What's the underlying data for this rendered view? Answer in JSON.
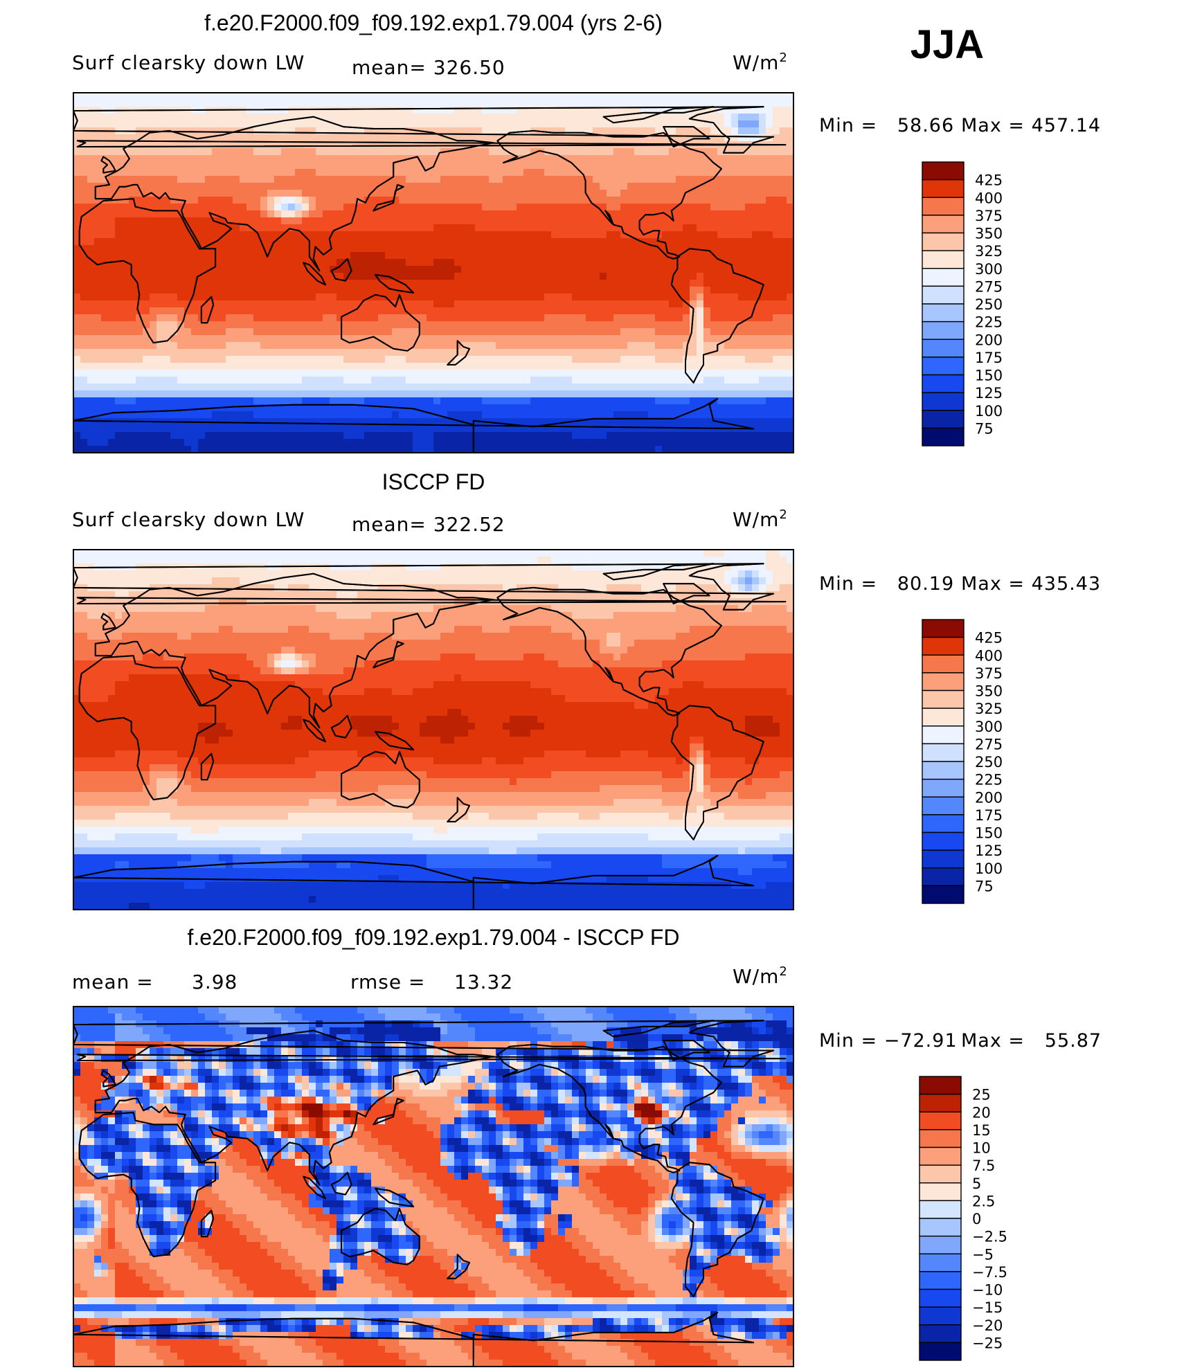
{
  "season": "JJA",
  "units": "W/m",
  "units_exp": "2",
  "colors": {
    "abs": [
      "#000b6f",
      "#0a24a8",
      "#0f38d2",
      "#1849f0",
      "#2f66fb",
      "#5587fc",
      "#7fa8fd",
      "#a8c6fe",
      "#cfe1ff",
      "#eef4ff",
      "#fde7d8",
      "#fcc6aa",
      "#fba07a",
      "#f7774d",
      "#f24d22",
      "#df3508",
      "#bd2203",
      "#8a0b02"
    ],
    "diff": [
      "#000b6f",
      "#0a24a8",
      "#0f38d2",
      "#1849f0",
      "#2f66fb",
      "#5587fc",
      "#7fa8fd",
      "#a8c6fe",
      "#d4e5ff",
      "#fde7d8",
      "#fcc6aa",
      "#fba07a",
      "#f7774d",
      "#f24d22",
      "#df3508",
      "#bd2203",
      "#8a0b02"
    ]
  },
  "chart_data": [
    {
      "type": "heatmap",
      "title": "f.e20.F2000.f09_f09.192.exp1.79.004 (yrs 2-6)",
      "variable_label": "Surf clearsky down LW",
      "mean_label": "mean= 326.50",
      "mean": 326.5,
      "units": "W/m2",
      "min_label": "Min =   58.66",
      "max_label": "Max = 457.14",
      "min": 58.66,
      "max": 457.14,
      "colorbar_levels": [
        "425",
        "400",
        "375",
        "350",
        "325",
        "300",
        "275",
        "250",
        "225",
        "200",
        "175",
        "150",
        "125",
        "100",
        "75"
      ],
      "field": "model"
    },
    {
      "type": "heatmap",
      "title": "ISCCP FD",
      "variable_label": "Surf clearsky down LW",
      "mean_label": "mean= 322.52",
      "mean": 322.52,
      "units": "W/m2",
      "min_label": "Min =   80.19",
      "max_label": "Max = 435.43",
      "min": 80.19,
      "max": 435.43,
      "colorbar_levels": [
        "425",
        "400",
        "375",
        "350",
        "325",
        "300",
        "275",
        "250",
        "225",
        "200",
        "175",
        "150",
        "125",
        "100",
        "75"
      ],
      "field": "obs"
    },
    {
      "type": "heatmap",
      "title": "f.e20.F2000.f09_f09.192.exp1.79.004 - ISCCP FD",
      "mean_label": "mean =",
      "mean_value": "3.98",
      "mean": 3.98,
      "rmse_label": "rmse =",
      "rmse_value": "13.32",
      "rmse": 13.32,
      "units": "W/m2",
      "min_label": "Min = −72.91",
      "max_label": "Max =   55.87",
      "min": -72.91,
      "max": 55.87,
      "colorbar_levels": [
        "25",
        "20",
        "15",
        "10",
        "7.5",
        "5",
        "2.5",
        "0",
        "−2.5",
        "−5",
        "−7.5",
        "−10",
        "−15",
        "−20",
        "−25"
      ],
      "field": "diff"
    }
  ]
}
